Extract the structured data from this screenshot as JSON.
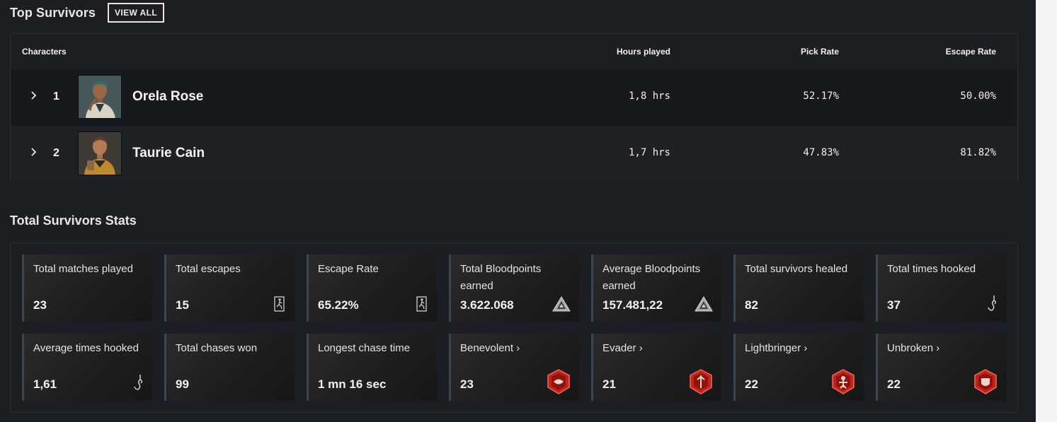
{
  "top_survivors": {
    "title": "Top Survivors",
    "view_all": "VIEW ALL",
    "columns": {
      "characters": "Characters",
      "hours": "Hours played",
      "pick": "Pick Rate",
      "escape": "Escape Rate"
    },
    "rows": [
      {
        "rank": "1",
        "name": "Orela Rose",
        "hours": "1,8 hrs",
        "pick": "52.17%",
        "escape": "50.00%"
      },
      {
        "rank": "2",
        "name": "Taurie Cain",
        "hours": "1,7 hrs",
        "pick": "47.83%",
        "escape": "81.82%"
      }
    ]
  },
  "total_stats": {
    "title": "Total Survivors Stats",
    "cards": [
      {
        "label": "Total matches played",
        "value": "23",
        "icon": "none"
      },
      {
        "label": "Total escapes",
        "value": "15",
        "icon": "exit-door-icon"
      },
      {
        "label": "Escape Rate",
        "value": "65.22%",
        "icon": "exit-door-icon"
      },
      {
        "label": "Total Bloodpoints earned",
        "value": "3.622.068",
        "icon": "bloodpoints-icon"
      },
      {
        "label": "Average Bloodpoints earned",
        "value": "157.481,22",
        "icon": "bloodpoints-icon"
      },
      {
        "label": "Total survivors healed",
        "value": "82",
        "icon": "none"
      },
      {
        "label": "Total times hooked",
        "value": "37",
        "icon": "hook-icon"
      },
      {
        "label": "Average times hooked",
        "value": "1,61",
        "icon": "hook-icon"
      },
      {
        "label": "Total chases won",
        "value": "99",
        "icon": "none"
      },
      {
        "label": "Longest chase time",
        "value": "1 mn 16 sec",
        "icon": "none"
      },
      {
        "label": "Benevolent ›",
        "value": "23",
        "icon": "benevolent-emblem-icon"
      },
      {
        "label": "Evader ›",
        "value": "21",
        "icon": "evader-emblem-icon"
      },
      {
        "label": "Lightbringer ›",
        "value": "22",
        "icon": "lightbringer-emblem-icon"
      },
      {
        "label": "Unbroken ›",
        "value": "22",
        "icon": "unbroken-emblem-icon"
      }
    ]
  },
  "colors": {
    "background": "#1b1f24",
    "card_accent": "#3b4650",
    "emblem_red": "#c4221b"
  }
}
